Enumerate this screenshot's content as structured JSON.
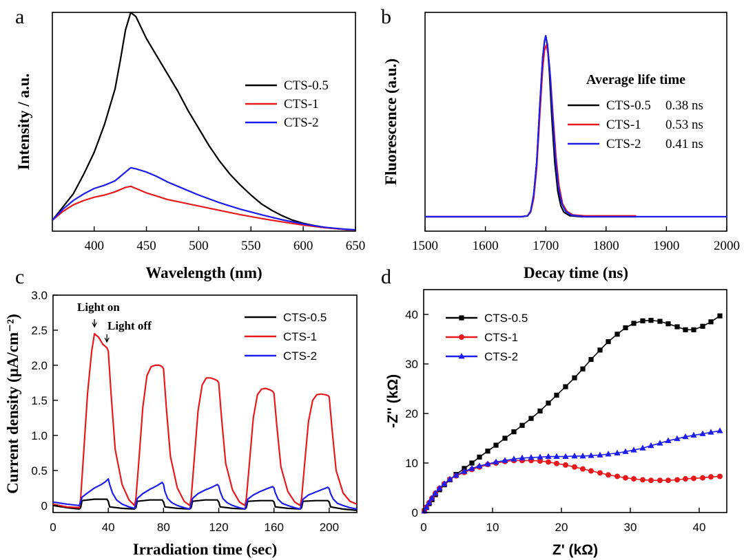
{
  "colors": {
    "black": "#000000",
    "red": "#e8191b",
    "blue": "#1d1df0"
  },
  "chart_data": [
    {
      "panel": "a",
      "type": "line",
      "xlabel": "Wavelength (nm)",
      "ylabel": "Intensity / a.u.",
      "xlim": [
        360,
        650
      ],
      "ylim": [
        0,
        1
      ],
      "xticks": [
        400,
        450,
        500,
        550,
        600,
        650
      ],
      "yticks_shown": false,
      "legend_position": "center-right",
      "series": [
        {
          "name": "CTS-0.5",
          "color": "#000000",
          "x": [
            360,
            370,
            380,
            390,
            400,
            410,
            420,
            425,
            430,
            435,
            440,
            445,
            450,
            460,
            470,
            480,
            490,
            500,
            510,
            520,
            530,
            540,
            550,
            560,
            570,
            580,
            590,
            600,
            610,
            620,
            630,
            640,
            650
          ],
          "y": [
            0.05,
            0.11,
            0.17,
            0.26,
            0.36,
            0.49,
            0.65,
            0.78,
            0.92,
            1.0,
            0.98,
            0.93,
            0.88,
            0.8,
            0.72,
            0.64,
            0.55,
            0.47,
            0.39,
            0.32,
            0.26,
            0.21,
            0.165,
            0.125,
            0.095,
            0.07,
            0.05,
            0.036,
            0.026,
            0.018,
            0.012,
            0.008,
            0.006
          ]
        },
        {
          "name": "CTS-1",
          "color": "#e8191b",
          "x": [
            360,
            370,
            380,
            390,
            400,
            410,
            420,
            430,
            435,
            440,
            450,
            460,
            470,
            480,
            490,
            500,
            520,
            540,
            560,
            580,
            600,
            620,
            640,
            650
          ],
          "y": [
            0.05,
            0.09,
            0.12,
            0.14,
            0.155,
            0.165,
            0.18,
            0.2,
            0.205,
            0.195,
            0.175,
            0.16,
            0.145,
            0.135,
            0.125,
            0.115,
            0.095,
            0.075,
            0.058,
            0.042,
            0.028,
            0.016,
            0.008,
            0.005
          ]
        },
        {
          "name": "CTS-2",
          "color": "#1d1df0",
          "x": [
            360,
            370,
            380,
            390,
            400,
            410,
            420,
            425,
            430,
            435,
            440,
            450,
            460,
            470,
            480,
            490,
            500,
            520,
            540,
            560,
            580,
            600,
            620,
            640,
            650
          ],
          "y": [
            0.05,
            0.1,
            0.14,
            0.17,
            0.195,
            0.21,
            0.23,
            0.25,
            0.27,
            0.29,
            0.285,
            0.27,
            0.25,
            0.225,
            0.205,
            0.185,
            0.165,
            0.13,
            0.1,
            0.075,
            0.052,
            0.033,
            0.018,
            0.009,
            0.006
          ]
        }
      ]
    },
    {
      "panel": "b",
      "type": "line",
      "xlabel": "Decay time (ns)",
      "ylabel": "Fluorescence (a.u.)",
      "xlim": [
        1500,
        2000
      ],
      "ylim": [
        0,
        1
      ],
      "xticks": [
        1500,
        1600,
        1700,
        1800,
        1900,
        2000
      ],
      "yticks_shown": false,
      "legend_title": "Average life time",
      "legend_position": "right",
      "series": [
        {
          "name": "CTS-0.5",
          "lifetime": "0.38 ns",
          "color": "#000000",
          "x": [
            1500,
            1660,
            1670,
            1675,
            1680,
            1685,
            1690,
            1695,
            1698,
            1700,
            1703,
            1706,
            1710,
            1715,
            1720,
            1725,
            1730,
            1740,
            1760,
            1850
          ],
          "y": [
            0,
            0,
            0.005,
            0.03,
            0.12,
            0.3,
            0.6,
            0.88,
            0.97,
            1.0,
            0.94,
            0.8,
            0.55,
            0.3,
            0.14,
            0.06,
            0.025,
            0.005,
            0,
            0
          ]
        },
        {
          "name": "CTS-1",
          "lifetime": "0.53 ns",
          "color": "#e8191b",
          "x": [
            1500,
            1660,
            1670,
            1675,
            1680,
            1685,
            1690,
            1695,
            1698,
            1701,
            1704,
            1708,
            1712,
            1717,
            1722,
            1728,
            1735,
            1745,
            1765,
            1850
          ],
          "y": [
            0,
            0,
            0.005,
            0.025,
            0.1,
            0.27,
            0.55,
            0.82,
            0.92,
            0.95,
            0.9,
            0.76,
            0.56,
            0.33,
            0.17,
            0.07,
            0.03,
            0.01,
            0.005,
            0.005
          ]
        },
        {
          "name": "CTS-2",
          "lifetime": "0.41 ns",
          "color": "#1d1df0",
          "x": [
            1500,
            1660,
            1670,
            1675,
            1680,
            1685,
            1690,
            1695,
            1698,
            1700,
            1703,
            1707,
            1711,
            1716,
            1721,
            1727,
            1733,
            1743,
            1765,
            2000
          ],
          "y": [
            0,
            0,
            0.005,
            0.03,
            0.12,
            0.3,
            0.6,
            0.88,
            0.97,
            1.0,
            0.95,
            0.8,
            0.58,
            0.33,
            0.16,
            0.07,
            0.03,
            0.008,
            0,
            0
          ]
        }
      ]
    },
    {
      "panel": "c",
      "type": "line",
      "xlabel": "Irradiation time (sec)",
      "ylabel": "Current density (μA/cm⁻²)",
      "xlim": [
        0,
        220
      ],
      "ylim": [
        -0.1,
        3.0
      ],
      "xticks": [
        0,
        40,
        80,
        120,
        160,
        200
      ],
      "yticks": [
        0,
        0.5,
        1.0,
        1.5,
        2.0,
        2.5,
        3.0
      ],
      "yticklabels": [
        "0",
        "0.5",
        "1.0",
        "1.5",
        "2.0",
        "2.5",
        "3.0"
      ],
      "legend_position": "top-right",
      "annotations": [
        "Light on",
        "Light off"
      ],
      "series": [
        {
          "name": "CTS-0.5",
          "color": "#000000",
          "x": [
            0,
            10,
            19,
            20,
            21,
            30,
            39,
            40,
            41,
            50,
            59,
            60,
            61,
            70,
            79,
            80,
            81,
            90,
            99,
            100,
            101,
            110,
            119,
            120,
            121,
            130,
            139,
            140,
            141,
            150,
            159,
            160,
            161,
            170,
            179,
            180,
            181,
            190,
            199,
            200,
            201,
            210,
            220
          ],
          "y": [
            0.0,
            -0.03,
            -0.05,
            -0.03,
            0.07,
            0.09,
            0.09,
            0.06,
            -0.02,
            -0.04,
            -0.05,
            -0.03,
            0.06,
            0.08,
            0.08,
            0.05,
            -0.02,
            -0.04,
            -0.05,
            -0.03,
            0.06,
            0.08,
            0.08,
            0.05,
            -0.02,
            -0.04,
            -0.05,
            -0.03,
            0.06,
            0.07,
            0.07,
            0.05,
            -0.02,
            -0.04,
            -0.05,
            -0.03,
            0.06,
            0.07,
            0.07,
            0.05,
            -0.02,
            -0.05,
            -0.07
          ]
        },
        {
          "name": "CTS-1",
          "color": "#e8191b",
          "x": [
            0,
            10,
            19,
            20,
            22,
            25,
            28,
            30,
            33,
            36,
            39,
            40,
            42,
            45,
            50,
            55,
            59,
            60,
            62,
            65,
            68,
            71,
            74,
            77,
            79,
            80,
            82,
            85,
            90,
            95,
            99,
            100,
            102,
            105,
            108,
            111,
            114,
            117,
            119,
            120,
            122,
            125,
            130,
            135,
            139,
            140,
            142,
            145,
            148,
            151,
            154,
            157,
            159,
            160,
            162,
            165,
            170,
            175,
            179,
            180,
            182,
            185,
            188,
            191,
            194,
            197,
            199,
            200,
            202,
            205,
            210,
            215,
            220
          ],
          "y": [
            0.02,
            -0.02,
            -0.03,
            0.1,
            0.7,
            1.6,
            2.2,
            2.45,
            2.4,
            2.3,
            2.25,
            2.2,
            1.6,
            0.8,
            0.3,
            0.08,
            0.0,
            0.1,
            0.6,
            1.4,
            1.85,
            1.98,
            2.0,
            2.0,
            1.98,
            1.95,
            1.4,
            0.7,
            0.25,
            0.06,
            0.0,
            0.1,
            0.6,
            1.35,
            1.72,
            1.82,
            1.82,
            1.8,
            1.78,
            1.75,
            1.25,
            0.6,
            0.22,
            0.05,
            0.0,
            0.1,
            0.55,
            1.25,
            1.58,
            1.66,
            1.67,
            1.65,
            1.63,
            1.6,
            1.15,
            0.55,
            0.2,
            0.05,
            0.0,
            0.1,
            0.55,
            1.2,
            1.5,
            1.58,
            1.59,
            1.58,
            1.57,
            1.55,
            1.1,
            0.5,
            0.18,
            0.06,
            0.02
          ]
        },
        {
          "name": "CTS-2",
          "color": "#1d1df0",
          "x": [
            0,
            10,
            19,
            20,
            21,
            25,
            30,
            35,
            38,
            40,
            41,
            43,
            46,
            50,
            55,
            59,
            60,
            61,
            65,
            70,
            75,
            79,
            80,
            81,
            83,
            86,
            90,
            95,
            99,
            100,
            101,
            105,
            110,
            115,
            119,
            120,
            121,
            123,
            126,
            130,
            135,
            139,
            140,
            141,
            145,
            150,
            155,
            159,
            160,
            161,
            163,
            166,
            170,
            175,
            179,
            180,
            181,
            185,
            190,
            195,
            199,
            200,
            201,
            203,
            206,
            210,
            215,
            220
          ],
          "y": [
            0.05,
            0.02,
            0.0,
            0.05,
            0.12,
            0.18,
            0.25,
            0.3,
            0.34,
            0.38,
            0.3,
            0.18,
            0.08,
            0.02,
            -0.02,
            -0.04,
            0.02,
            0.1,
            0.17,
            0.23,
            0.28,
            0.33,
            0.3,
            0.2,
            0.1,
            0.04,
            0.0,
            -0.03,
            -0.05,
            0.02,
            0.1,
            0.17,
            0.22,
            0.26,
            0.3,
            0.28,
            0.2,
            0.1,
            0.04,
            0.0,
            -0.03,
            -0.05,
            0.02,
            0.09,
            0.15,
            0.2,
            0.24,
            0.27,
            0.25,
            0.18,
            0.09,
            0.03,
            0.0,
            -0.03,
            -0.05,
            0.02,
            0.09,
            0.15,
            0.19,
            0.23,
            0.26,
            0.24,
            0.17,
            0.09,
            0.03,
            0.0,
            -0.03,
            -0.05
          ]
        }
      ]
    },
    {
      "panel": "d",
      "type": "scatter",
      "xlabel": "Z' (kΩ)",
      "ylabel": "-Z'' (kΩ)",
      "xlim": [
        0,
        44
      ],
      "ylim": [
        0,
        45
      ],
      "xticks": [
        0,
        10,
        20,
        30,
        40
      ],
      "yticks": [
        0,
        10,
        20,
        30,
        40
      ],
      "legend_position": "top-left",
      "series": [
        {
          "name": "CTS-0.5",
          "color": "#000000",
          "marker": "square",
          "x": [
            0.1,
            0.4,
            0.8,
            1.2,
            1.7,
            2.3,
            3.0,
            3.8,
            4.7,
            5.9,
            7.0,
            8.1,
            9.3,
            10.5,
            11.8,
            13.1,
            14.3,
            15.6,
            16.9,
            18.1,
            19.3,
            20.6,
            21.9,
            23.1,
            24.3,
            25.6,
            26.8,
            28.1,
            29.3,
            30.5,
            31.8,
            33.0,
            34.3,
            35.5,
            36.8,
            38.0,
            39.2,
            40.5,
            41.7,
            43.0
          ],
          "y": [
            0.3,
            1.0,
            1.8,
            2.6,
            3.6,
            4.6,
            5.6,
            6.6,
            7.7,
            8.9,
            10.0,
            11.2,
            12.4,
            13.6,
            15.0,
            16.3,
            17.6,
            19.0,
            20.5,
            22.1,
            23.7,
            25.4,
            27.2,
            29.0,
            30.9,
            32.8,
            34.5,
            36.0,
            37.3,
            38.2,
            38.7,
            38.8,
            38.6,
            38.1,
            37.5,
            36.9,
            36.9,
            37.6,
            38.5,
            39.7
          ]
        },
        {
          "name": "CTS-1",
          "color": "#e8191b",
          "marker": "circle",
          "x": [
            0.1,
            0.4,
            0.8,
            1.2,
            1.7,
            2.3,
            3.0,
            3.8,
            4.7,
            5.9,
            7.0,
            8.1,
            9.3,
            10.5,
            11.8,
            13.1,
            14.3,
            15.6,
            16.9,
            18.1,
            19.3,
            20.6,
            21.9,
            23.1,
            24.3,
            25.6,
            26.8,
            28.1,
            29.3,
            30.5,
            31.8,
            33.0,
            34.3,
            35.5,
            36.8,
            38.0,
            39.2,
            40.5,
            41.7,
            43.0
          ],
          "y": [
            0.3,
            1.1,
            2.0,
            2.9,
            3.9,
            4.9,
            5.8,
            6.7,
            7.4,
            8.1,
            8.7,
            9.2,
            9.7,
            10.0,
            10.3,
            10.5,
            10.5,
            10.5,
            10.4,
            10.2,
            9.9,
            9.6,
            9.2,
            8.8,
            8.4,
            8.0,
            7.6,
            7.3,
            7.0,
            6.8,
            6.6,
            6.5,
            6.5,
            6.5,
            6.6,
            6.8,
            6.9,
            7.0,
            7.2,
            7.3
          ]
        },
        {
          "name": "CTS-2",
          "color": "#1d1df0",
          "marker": "triangle",
          "x": [
            0.1,
            0.4,
            0.8,
            1.2,
            1.7,
            2.3,
            3.0,
            3.8,
            4.7,
            5.9,
            7.0,
            8.1,
            9.3,
            10.5,
            11.8,
            13.1,
            14.3,
            15.6,
            16.9,
            18.1,
            19.3,
            20.6,
            21.9,
            23.1,
            24.3,
            25.6,
            26.8,
            28.1,
            29.3,
            30.5,
            31.8,
            33.0,
            34.3,
            35.5,
            36.8,
            38.0,
            39.2,
            40.5,
            41.7,
            43.0
          ],
          "y": [
            0.3,
            1.1,
            2.0,
            2.9,
            3.9,
            4.9,
            5.8,
            6.7,
            7.5,
            8.3,
            8.9,
            9.4,
            9.8,
            10.2,
            10.5,
            10.8,
            11.0,
            11.1,
            11.2,
            11.3,
            11.3,
            11.3,
            11.4,
            11.4,
            11.5,
            11.6,
            11.8,
            12.0,
            12.3,
            12.6,
            13.0,
            13.5,
            14.0,
            14.5,
            14.9,
            15.3,
            15.6,
            15.9,
            16.2,
            16.5
          ]
        }
      ]
    }
  ]
}
